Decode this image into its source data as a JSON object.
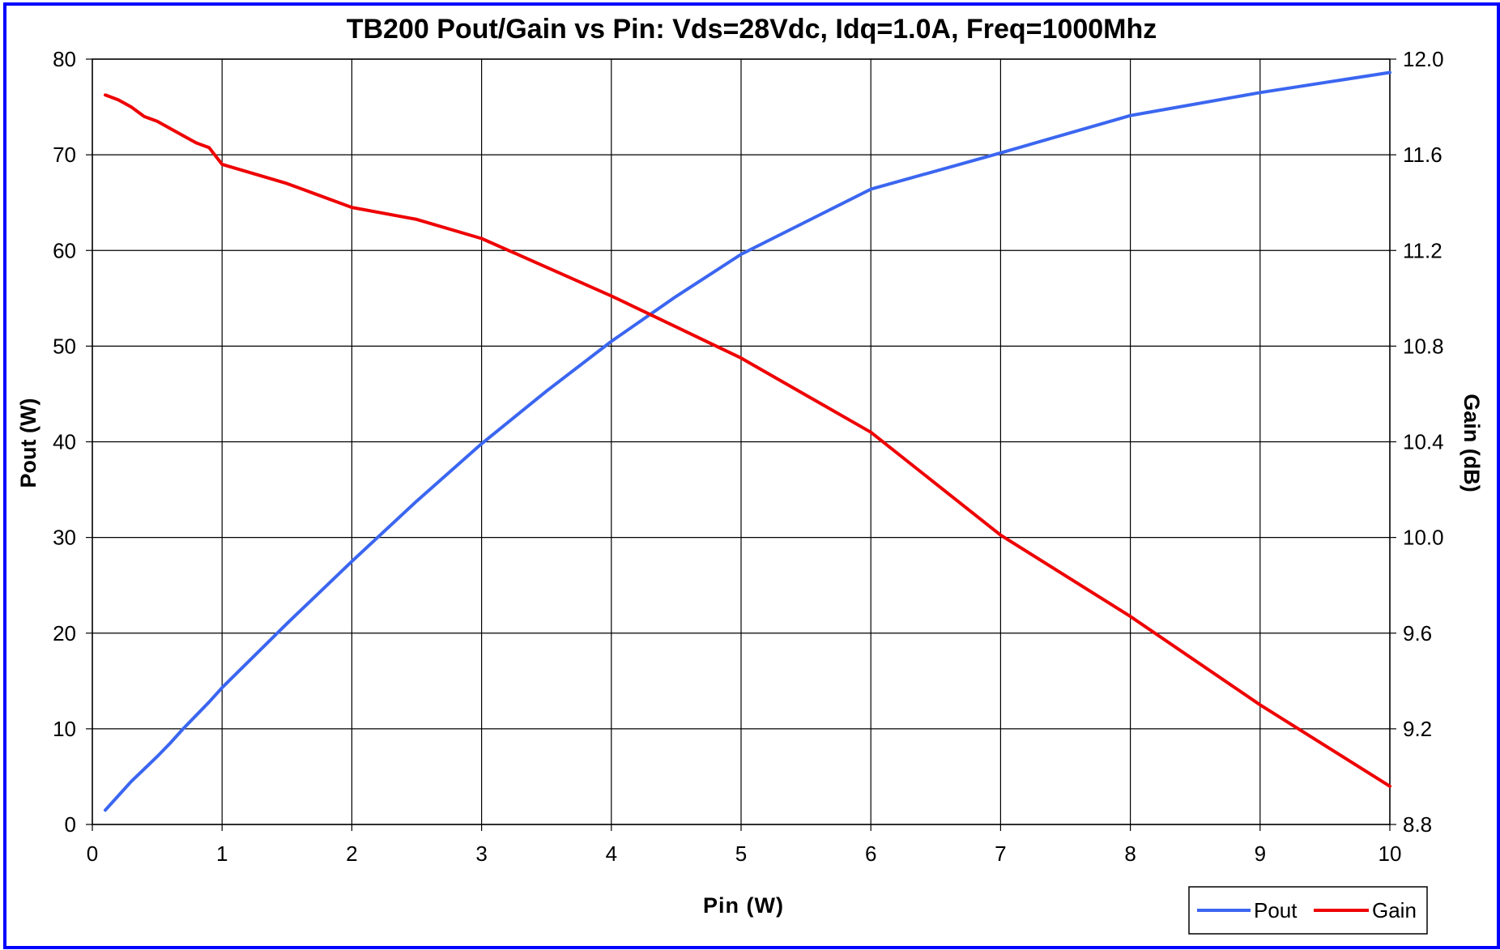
{
  "chart_data": {
    "type": "line",
    "title": "TB200 Pout/Gain vs Pin: Vds=28Vdc, Idq=1.0A, Freq=1000Mhz",
    "xlabel": "Pin (W)",
    "ylabel": "Pout (W)",
    "y2label": "Gain (dB)",
    "xlim": [
      0,
      10
    ],
    "ylim": [
      0,
      80
    ],
    "y2lim": [
      8.8,
      12.0
    ],
    "x_ticks": [
      "0",
      "1",
      "2",
      "3",
      "4",
      "5",
      "6",
      "7",
      "8",
      "9",
      "10"
    ],
    "y_ticks": [
      "0",
      "10",
      "20",
      "30",
      "40",
      "50",
      "60",
      "70",
      "80"
    ],
    "y2_ticks": [
      "8.8",
      "9.2",
      "9.6",
      "10.0",
      "10.4",
      "10.8",
      "11.2",
      "11.6",
      "12.0"
    ],
    "grid": true,
    "legend": "bottom-right",
    "series": [
      {
        "name": "Pout",
        "axis": "left",
        "color": "#3b66f0",
        "x": [
          0.1,
          0.2,
          0.3,
          0.4,
          0.5,
          0.6,
          0.7,
          0.8,
          0.9,
          1,
          1.5,
          2,
          2.5,
          3,
          3.5,
          4,
          4.5,
          5,
          6,
          7,
          8,
          9,
          10
        ],
        "y": [
          1.5,
          3.0,
          4.5,
          5.8,
          7.1,
          8.5,
          10.0,
          11.4,
          12.8,
          14.3,
          21.0,
          27.5,
          33.8,
          39.8,
          45.3,
          50.5,
          55.2,
          59.6,
          66.4,
          70.2,
          74.1,
          76.5,
          78.6
        ]
      },
      {
        "name": "Gain",
        "axis": "right",
        "color": "#ee0000",
        "x": [
          0.1,
          0.2,
          0.3,
          0.4,
          0.5,
          0.6,
          0.7,
          0.8,
          0.9,
          1,
          1.5,
          2,
          2.5,
          3,
          3.5,
          4,
          4.5,
          5,
          6,
          7,
          8,
          9,
          10
        ],
        "y": [
          11.85,
          11.83,
          11.8,
          11.76,
          11.74,
          11.71,
          11.68,
          11.65,
          11.63,
          11.56,
          11.48,
          11.38,
          11.33,
          11.25,
          11.13,
          11.01,
          10.88,
          10.75,
          10.44,
          10.01,
          9.67,
          9.3,
          8.96
        ]
      }
    ]
  }
}
